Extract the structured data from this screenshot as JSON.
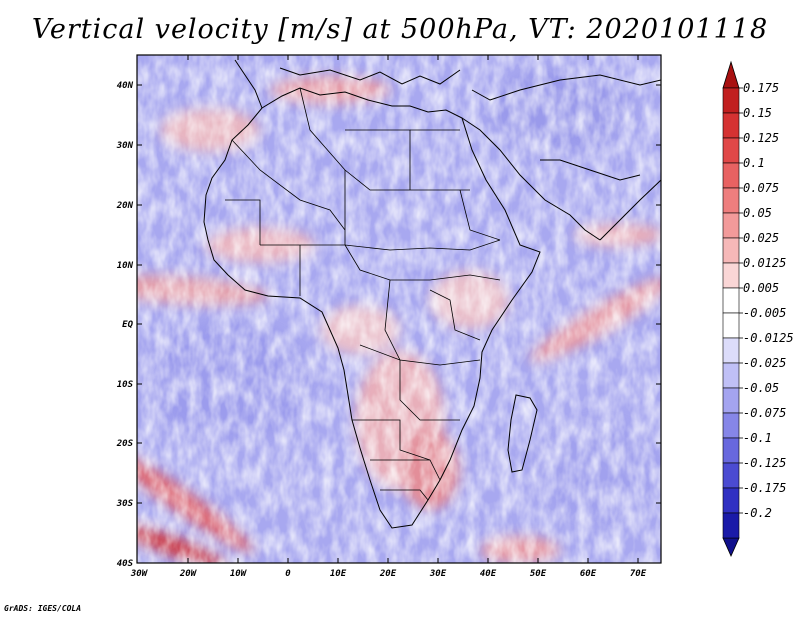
{
  "title": "Vertical velocity [m/s] at 500hPa, VT: 2020101118",
  "credit": "GrADS: IGES/COLA",
  "lat_labels": [
    "40N",
    "30N",
    "20N",
    "10N",
    "EQ",
    "10S",
    "20S",
    "30S",
    "40S"
  ],
  "lon_labels": [
    "30W",
    "20W",
    "10W",
    "0",
    "10E",
    "20E",
    "30E",
    "40E",
    "50E",
    "60E",
    "70E"
  ],
  "colorbar": {
    "labels": [
      "0.175",
      "0.15",
      "0.125",
      "0.1",
      "0.075",
      "0.05",
      "0.025",
      "0.0125",
      "0.005",
      "-0.005",
      "-0.0125",
      "-0.025",
      "-0.05",
      "-0.075",
      "-0.1",
      "-0.125",
      "-0.175",
      "-0.2"
    ],
    "colors": [
      "#c11f1f",
      "#d53232",
      "#e04848",
      "#e86262",
      "#ee7e7e",
      "#f29a9a",
      "#f6b8b8",
      "#fad6d6",
      "#ffffff",
      "#ffffff",
      "#dcdcfa",
      "#c0c0f6",
      "#a4a4f0",
      "#8686e8",
      "#6868de",
      "#4b4bd2",
      "#3030c2",
      "#1a1aa8"
    ],
    "top_color": "#a81010",
    "bottom_color": "#10108c"
  },
  "colors": {
    "land_line": "#000000",
    "frame": "#000000"
  }
}
